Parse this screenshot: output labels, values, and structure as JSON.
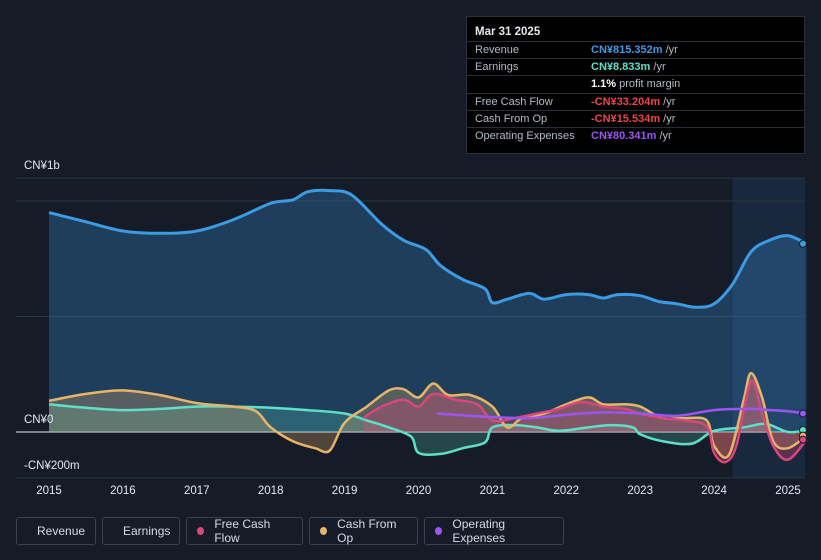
{
  "tooltip": {
    "date": "Mar 31 2025",
    "rows": [
      {
        "label": "Revenue",
        "value": "CN¥815.352m",
        "unit": " /yr",
        "color": "#3b9be3"
      },
      {
        "label": "Earnings",
        "value": "CN¥8.833m",
        "unit": " /yr",
        "color": "#5ee0c8"
      },
      {
        "label": "",
        "value": "1.1%",
        "unit": " profit margin",
        "color": "#ffffff"
      },
      {
        "label": "Free Cash Flow",
        "value": "-CN¥33.204m",
        "unit": " /yr",
        "color": "#f0434d"
      },
      {
        "label": "Cash From Op",
        "value": "-CN¥15.534m",
        "unit": " /yr",
        "color": "#f0434d"
      },
      {
        "label": "Operating Expenses",
        "value": "CN¥80.341m",
        "unit": " /yr",
        "color": "#9d55f0"
      }
    ]
  },
  "legend": [
    {
      "label": "Revenue",
      "color": "#3b9be3"
    },
    {
      "label": "Earnings",
      "color": "#5ee0c8"
    },
    {
      "label": "Free Cash Flow",
      "color": "#d9467a"
    },
    {
      "label": "Cash From Op",
      "color": "#e8b46a"
    },
    {
      "label": "Operating Expenses",
      "color": "#9d55f0"
    }
  ],
  "chart_data": {
    "type": "area",
    "y_labels": [
      "CN¥1b",
      "CN¥0",
      "-CN¥200m"
    ],
    "ylim": [
      -200,
      1000
    ],
    "xlim": [
      2015,
      2025.25
    ],
    "x_tick_labels": [
      "2015",
      "2016",
      "2017",
      "2018",
      "2019",
      "2020",
      "2021",
      "2022",
      "2023",
      "2024",
      "2025"
    ],
    "grid": true,
    "forecast_band_start": 2024.25,
    "series": [
      {
        "name": "Revenue",
        "color": "#3b9be3",
        "fill": true,
        "points": [
          [
            2015,
            950
          ],
          [
            2015.5,
            910
          ],
          [
            2016,
            870
          ],
          [
            2016.5,
            860
          ],
          [
            2017,
            870
          ],
          [
            2017.5,
            920
          ],
          [
            2018,
            990
          ],
          [
            2018.3,
            1005
          ],
          [
            2018.5,
            1040
          ],
          [
            2018.8,
            1045
          ],
          [
            2019.1,
            1025
          ],
          [
            2019.5,
            900
          ],
          [
            2019.8,
            830
          ],
          [
            2020.1,
            790
          ],
          [
            2020.3,
            720
          ],
          [
            2020.6,
            660
          ],
          [
            2020.9,
            620
          ],
          [
            2021,
            560
          ],
          [
            2021.2,
            575
          ],
          [
            2021.5,
            600
          ],
          [
            2021.7,
            575
          ],
          [
            2022,
            595
          ],
          [
            2022.3,
            595
          ],
          [
            2022.5,
            580
          ],
          [
            2022.7,
            595
          ],
          [
            2023,
            590
          ],
          [
            2023.25,
            565
          ],
          [
            2023.5,
            555
          ],
          [
            2023.75,
            540
          ],
          [
            2024,
            555
          ],
          [
            2024.25,
            640
          ],
          [
            2024.5,
            780
          ],
          [
            2024.75,
            830
          ],
          [
            2025,
            850
          ],
          [
            2025.25,
            815
          ]
        ]
      },
      {
        "name": "Earnings",
        "color": "#5ee0c8",
        "fill": true,
        "points": [
          [
            2015,
            120
          ],
          [
            2015.5,
            105
          ],
          [
            2016,
            95
          ],
          [
            2016.5,
            100
          ],
          [
            2017,
            110
          ],
          [
            2017.5,
            110
          ],
          [
            2018,
            105
          ],
          [
            2018.5,
            95
          ],
          [
            2019,
            80
          ],
          [
            2019.3,
            50
          ],
          [
            2019.6,
            20
          ],
          [
            2019.9,
            -20
          ],
          [
            2020,
            -90
          ],
          [
            2020.3,
            -95
          ],
          [
            2020.6,
            -70
          ],
          [
            2020.9,
            -45
          ],
          [
            2021,
            20
          ],
          [
            2021.3,
            30
          ],
          [
            2021.6,
            20
          ],
          [
            2021.9,
            5
          ],
          [
            2022.3,
            20
          ],
          [
            2022.6,
            30
          ],
          [
            2022.9,
            20
          ],
          [
            2023,
            -10
          ],
          [
            2023.3,
            -40
          ],
          [
            2023.7,
            -50
          ],
          [
            2024,
            5
          ],
          [
            2024.4,
            20
          ],
          [
            2024.7,
            35
          ],
          [
            2025,
            0
          ],
          [
            2025.25,
            8.8
          ]
        ]
      },
      {
        "name": "Free Cash Flow",
        "color": "#d9467a",
        "fill": true,
        "points": [
          [
            2019.25,
            60
          ],
          [
            2019.5,
            110
          ],
          [
            2019.8,
            140
          ],
          [
            2020,
            110
          ],
          [
            2020.2,
            165
          ],
          [
            2020.5,
            140
          ],
          [
            2020.8,
            120
          ],
          [
            2021,
            50
          ],
          [
            2021.3,
            60
          ],
          [
            2021.6,
            80
          ],
          [
            2021.9,
            100
          ],
          [
            2022.2,
            130
          ],
          [
            2022.5,
            110
          ],
          [
            2022.8,
            100
          ],
          [
            2023,
            80
          ],
          [
            2023.3,
            60
          ],
          [
            2023.6,
            50
          ],
          [
            2023.9,
            25
          ],
          [
            2024,
            -90
          ],
          [
            2024.15,
            -130
          ],
          [
            2024.3,
            -60
          ],
          [
            2024.5,
            220
          ],
          [
            2024.65,
            80
          ],
          [
            2024.8,
            -60
          ],
          [
            2025,
            -120
          ],
          [
            2025.25,
            -33.2
          ]
        ]
      },
      {
        "name": "Cash From Op",
        "color": "#e8b46a",
        "fill": true,
        "points": [
          [
            2015,
            135
          ],
          [
            2015.5,
            165
          ],
          [
            2016,
            180
          ],
          [
            2016.5,
            160
          ],
          [
            2017,
            125
          ],
          [
            2017.5,
            110
          ],
          [
            2017.8,
            90
          ],
          [
            2018,
            20
          ],
          [
            2018.3,
            -40
          ],
          [
            2018.6,
            -70
          ],
          [
            2018.8,
            -80
          ],
          [
            2019,
            40
          ],
          [
            2019.3,
            110
          ],
          [
            2019.6,
            180
          ],
          [
            2019.8,
            185
          ],
          [
            2020,
            150
          ],
          [
            2020.2,
            210
          ],
          [
            2020.4,
            160
          ],
          [
            2020.7,
            160
          ],
          [
            2021,
            110
          ],
          [
            2021.2,
            20
          ],
          [
            2021.4,
            60
          ],
          [
            2021.7,
            80
          ],
          [
            2022,
            120
          ],
          [
            2022.3,
            150
          ],
          [
            2022.5,
            120
          ],
          [
            2022.8,
            120
          ],
          [
            2023,
            110
          ],
          [
            2023.3,
            60
          ],
          [
            2023.6,
            60
          ],
          [
            2023.9,
            50
          ],
          [
            2024,
            -60
          ],
          [
            2024.2,
            -100
          ],
          [
            2024.4,
            140
          ],
          [
            2024.5,
            255
          ],
          [
            2024.65,
            150
          ],
          [
            2024.8,
            -40
          ],
          [
            2025,
            -70
          ],
          [
            2025.25,
            -15.5
          ]
        ]
      },
      {
        "name": "Operating Expenses",
        "color": "#9d55f0",
        "fill": false,
        "points": [
          [
            2020.25,
            80
          ],
          [
            2020.5,
            75
          ],
          [
            2021,
            65
          ],
          [
            2021.5,
            60
          ],
          [
            2022,
            75
          ],
          [
            2022.5,
            85
          ],
          [
            2023,
            80
          ],
          [
            2023.5,
            70
          ],
          [
            2024,
            95
          ],
          [
            2024.5,
            100
          ],
          [
            2024.75,
            95
          ],
          [
            2025,
            90
          ],
          [
            2025.25,
            80.3
          ]
        ]
      }
    ]
  }
}
